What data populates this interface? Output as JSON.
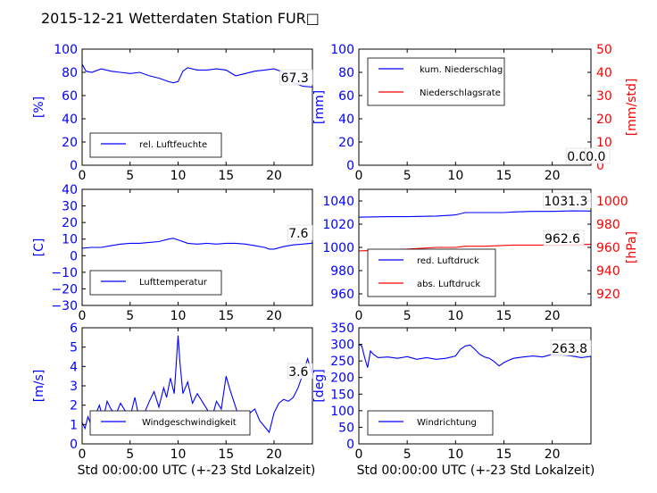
{
  "figure_title": "2015-12-21 Wetterdaten Station FUR□",
  "x_label": "Std 00:00:00 UTC (+-23 Std Lokalzeit)",
  "colors": {
    "primary": "#0000ff",
    "secondary": "#ff0000",
    "axis": "#000000"
  },
  "chart_data": [
    {
      "type": "line",
      "name": "humidity-panel",
      "ylabel": "[%]",
      "ylim": [
        0,
        100
      ],
      "yticks": [
        "0",
        "20",
        "40",
        "60",
        "80",
        "100"
      ],
      "xlim": [
        0,
        24
      ],
      "xticks": [
        "0",
        "5",
        "10",
        "15",
        "20"
      ],
      "legend_placement": "lower-left",
      "last_label": "67.3",
      "series": [
        {
          "name": "rel. Luftfeuchte",
          "color": "#0000ff",
          "x": [
            0,
            0.4,
            1,
            2,
            3,
            4,
            5,
            6,
            7,
            8,
            9,
            9.5,
            10,
            10.5,
            11,
            12,
            13,
            14,
            15,
            16,
            17,
            18,
            19,
            20,
            21,
            22,
            23,
            24
          ],
          "values": [
            87,
            81,
            80,
            83,
            81,
            80,
            79,
            80,
            77,
            75,
            72,
            71,
            72,
            81,
            84,
            82,
            82,
            83,
            82,
            77,
            79,
            81,
            82,
            83,
            80,
            71,
            68,
            67.3
          ]
        }
      ]
    },
    {
      "type": "line",
      "name": "precipitation-panel",
      "ylabel": "[mm]",
      "ylim": [
        0,
        100
      ],
      "yticks": [
        "0",
        "20",
        "40",
        "60",
        "80",
        "100"
      ],
      "y2label": "[mm/std]",
      "y2lim": [
        0,
        50
      ],
      "y2ticks": [
        "0",
        "10",
        "20",
        "30",
        "40",
        "50"
      ],
      "xlim": [
        0,
        24
      ],
      "xticks": [
        "0",
        "5",
        "10",
        "15",
        "20"
      ],
      "legend_placement": "upper-left",
      "last_label": "0.0",
      "last_label_2": "0.0",
      "series": [
        {
          "name": "kum. Niederschlag",
          "color": "#0000ff",
          "axis": "left",
          "x": [
            0,
            6,
            12,
            18,
            24
          ],
          "values": [
            0,
            0,
            0,
            0,
            0
          ]
        },
        {
          "name": "Niederschlagsrate",
          "color": "#ff0000",
          "axis": "right",
          "x": [
            0,
            6,
            12,
            18,
            24
          ],
          "values": [
            0,
            0,
            0,
            0,
            0
          ]
        }
      ]
    },
    {
      "type": "line",
      "name": "temperature-panel",
      "ylabel": "[C]",
      "ylim": [
        -30,
        40
      ],
      "yticks": [
        "−30",
        "−20",
        "−10",
        "0",
        "10",
        "20",
        "30",
        "40"
      ],
      "xlim": [
        0,
        24
      ],
      "xticks": [
        "0",
        "5",
        "10",
        "15",
        "20"
      ],
      "legend_placement": "lower-left",
      "last_label": "7.6",
      "series": [
        {
          "name": "Lufttemperatur",
          "color": "#0000ff",
          "x": [
            0,
            1,
            2,
            3,
            4,
            5,
            6,
            7,
            8,
            9,
            9.5,
            10,
            11,
            12,
            13,
            14,
            15,
            16,
            17,
            18,
            19,
            19.5,
            20,
            21,
            22,
            23,
            24
          ],
          "values": [
            4.5,
            5,
            5,
            6,
            7,
            7.5,
            7.5,
            8,
            8.5,
            10,
            10.5,
            9.5,
            7.5,
            7,
            7.5,
            7,
            7.5,
            7.5,
            7,
            6,
            5,
            4,
            4,
            5.5,
            6.5,
            7,
            7.6
          ]
        }
      ]
    },
    {
      "type": "line",
      "name": "pressure-panel",
      "ylabel": "",
      "ylim": [
        950,
        1050
      ],
      "yticks": [
        "960",
        "980",
        "1000",
        "1020",
        "1040"
      ],
      "y2label": "[hPa]",
      "y2lim": [
        910,
        1010
      ],
      "y2ticks": [
        "920",
        "940",
        "960",
        "980",
        "1000"
      ],
      "xlim": [
        0,
        24
      ],
      "xticks": [
        "0",
        "5",
        "10",
        "15",
        "20"
      ],
      "legend_placement": "lower-left",
      "last_label": "1031.3",
      "last_label_2": "962.6",
      "series": [
        {
          "name": "red. Luftdruck",
          "color": "#0000ff",
          "axis": "left",
          "x": [
            0,
            3,
            5,
            8,
            9,
            10,
            11,
            13,
            15,
            16,
            18,
            20,
            22,
            24
          ],
          "values": [
            1026,
            1026.5,
            1026.5,
            1027,
            1027.5,
            1028,
            1030,
            1030,
            1030,
            1030.5,
            1031,
            1031,
            1031.5,
            1031.3
          ]
        },
        {
          "name": "abs. Luftdruck",
          "color": "#ff0000",
          "axis": "right",
          "x": [
            0,
            4,
            6,
            8,
            10,
            11,
            13,
            16,
            20,
            24
          ],
          "values": [
            957,
            958,
            959,
            960,
            960,
            961,
            961,
            962,
            962,
            962.6
          ]
        }
      ]
    },
    {
      "type": "line",
      "name": "windspeed-panel",
      "ylabel": "[m/s]",
      "ylim": [
        0,
        6
      ],
      "yticks": [
        "0",
        "1",
        "2",
        "3",
        "4",
        "5",
        "6"
      ],
      "xlim": [
        0,
        24
      ],
      "xticks": [
        "0",
        "5",
        "10",
        "15",
        "20"
      ],
      "legend_placement": "lower-left",
      "last_label": "3.6",
      "series": [
        {
          "name": "Windgeschwindigkeit",
          "color": "#0000ff",
          "x": [
            0,
            0.3,
            0.6,
            1,
            1.4,
            1.8,
            2.2,
            2.6,
            3,
            3.5,
            4,
            4.5,
            5,
            5.5,
            6,
            6.5,
            7,
            7.5,
            8,
            8.5,
            8.8,
            9.2,
            9.6,
            10,
            10.2,
            10.5,
            11,
            11.5,
            12,
            12.5,
            13,
            13.5,
            14,
            14.5,
            15,
            15.4,
            15.8,
            16.2,
            16.6,
            17,
            17.5,
            18,
            18.5,
            19,
            19.5,
            20,
            20.5,
            21,
            21.5,
            22,
            22.5,
            23,
            23.5,
            24
          ],
          "values": [
            1.1,
            0.8,
            1.4,
            0.9,
            1.5,
            2,
            1.3,
            2.2,
            1.8,
            1.5,
            2.1,
            1.7,
            1.4,
            2.4,
            1.2,
            1.6,
            2.2,
            2.7,
            1.9,
            2.9,
            2.4,
            3.4,
            2.6,
            5.6,
            4.2,
            2.6,
            3.2,
            2.1,
            2.6,
            2.2,
            1.8,
            1.3,
            2.2,
            1.8,
            3.5,
            2.8,
            2.2,
            1.6,
            1.2,
            1.4,
            1.6,
            1.8,
            1.2,
            0.9,
            0.6,
            1.6,
            2.1,
            2.3,
            2.2,
            2.4,
            2.9,
            3.6,
            4.4,
            3.6
          ]
        }
      ]
    },
    {
      "type": "line",
      "name": "winddirection-panel",
      "ylabel": "[deg]",
      "ylim": [
        0,
        350
      ],
      "yticks": [
        "0",
        "50",
        "100",
        "150",
        "200",
        "250",
        "300",
        "350"
      ],
      "xlim": [
        0,
        24
      ],
      "xticks": [
        "0",
        "5",
        "10",
        "15",
        "20"
      ],
      "legend_placement": "lower-left",
      "last_label": "263.8",
      "series": [
        {
          "name": "Windrichtung",
          "color": "#0000ff",
          "x": [
            0,
            0.3,
            0.6,
            0.9,
            1.2,
            1.5,
            2,
            3,
            4,
            5,
            6,
            7,
            8,
            9,
            10,
            10.5,
            11,
            11.5,
            12,
            12.5,
            13,
            13.5,
            14,
            14.5,
            15,
            15.5,
            16,
            17,
            18,
            19,
            20,
            21,
            22,
            23,
            24
          ],
          "values": [
            300,
            295,
            260,
            230,
            280,
            270,
            260,
            262,
            258,
            263,
            255,
            260,
            255,
            258,
            265,
            285,
            295,
            298,
            285,
            270,
            262,
            258,
            248,
            235,
            245,
            252,
            258,
            262,
            265,
            262,
            270,
            268,
            265,
            260,
            263.8
          ]
        }
      ]
    }
  ]
}
